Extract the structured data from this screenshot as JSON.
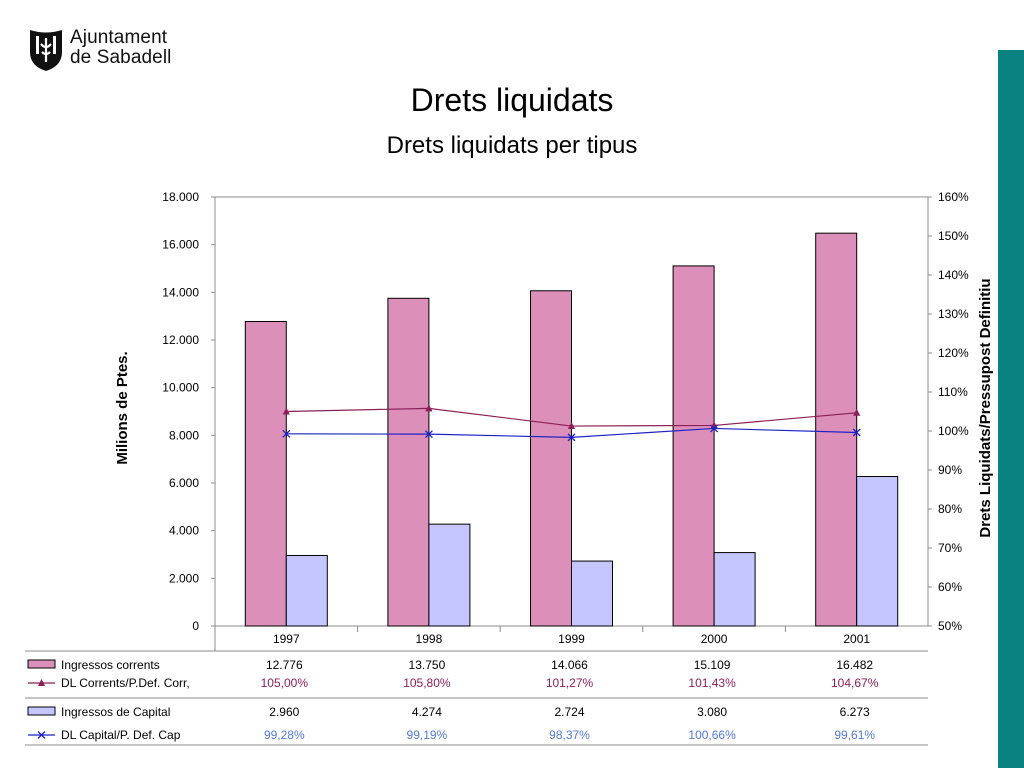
{
  "logo": {
    "line1": "Ajuntament",
    "line2": "de Sabadell"
  },
  "title": "Drets liquidats",
  "subtitle": "Drets liquidats per tipus",
  "colors": {
    "accent_bar": "#0a8281",
    "bar_corrents": "#db8fb9",
    "bar_capital": "#c5c6ff",
    "line_corrents": "#8b1f57",
    "line_capital": "#1c22c8",
    "pct_capital_text": "#5578d8",
    "pct_corrents_text": "#8b1f57"
  },
  "chart_data": {
    "type": "bar",
    "categories": [
      "1997",
      "1998",
      "1999",
      "2000",
      "2001"
    ],
    "ylabel": "Milions de Ptes.",
    "y2label": "Drets Liquidats/Pressupost Definitiu",
    "ylim": [
      0,
      18000
    ],
    "y2lim": [
      50,
      160
    ],
    "yticks": [
      "0",
      "2.000",
      "4.000",
      "6.000",
      "8.000",
      "10.000",
      "12.000",
      "14.000",
      "16.000",
      "18.000"
    ],
    "y2ticks": [
      "50%",
      "60%",
      "70%",
      "80%",
      "90%",
      "100%",
      "110%",
      "120%",
      "130%",
      "140%",
      "150%",
      "160%"
    ],
    "grid": false,
    "legend": "data-table-below",
    "series": [
      {
        "name": "Ingressos corrents",
        "type": "bar",
        "axis": "left",
        "values": [
          12776,
          13750,
          14066,
          15109,
          16482
        ],
        "labels": [
          "12.776",
          "13.750",
          "14.066",
          "15.109",
          "16.482"
        ]
      },
      {
        "name": "DL Corrents/P.Def. Corr,",
        "type": "line",
        "axis": "right",
        "values": [
          105.0,
          105.8,
          101.27,
          101.43,
          104.67
        ],
        "labels": [
          "105,00%",
          "105,80%",
          "101,27%",
          "101,43%",
          "104,67%"
        ]
      },
      {
        "name": "Ingressos de Capital",
        "type": "bar",
        "axis": "left",
        "values": [
          2960,
          4274,
          2724,
          3080,
          6273
        ],
        "labels": [
          "2.960",
          "4.274",
          "2.724",
          "3.080",
          "6.273"
        ]
      },
      {
        "name": "DL Capital/P. Def. Cap",
        "type": "line",
        "axis": "right",
        "values": [
          99.28,
          99.19,
          98.37,
          100.66,
          99.61
        ],
        "labels": [
          "99,28%",
          "99,19%",
          "98,37%",
          "100,66%",
          "99,61%"
        ]
      }
    ]
  }
}
